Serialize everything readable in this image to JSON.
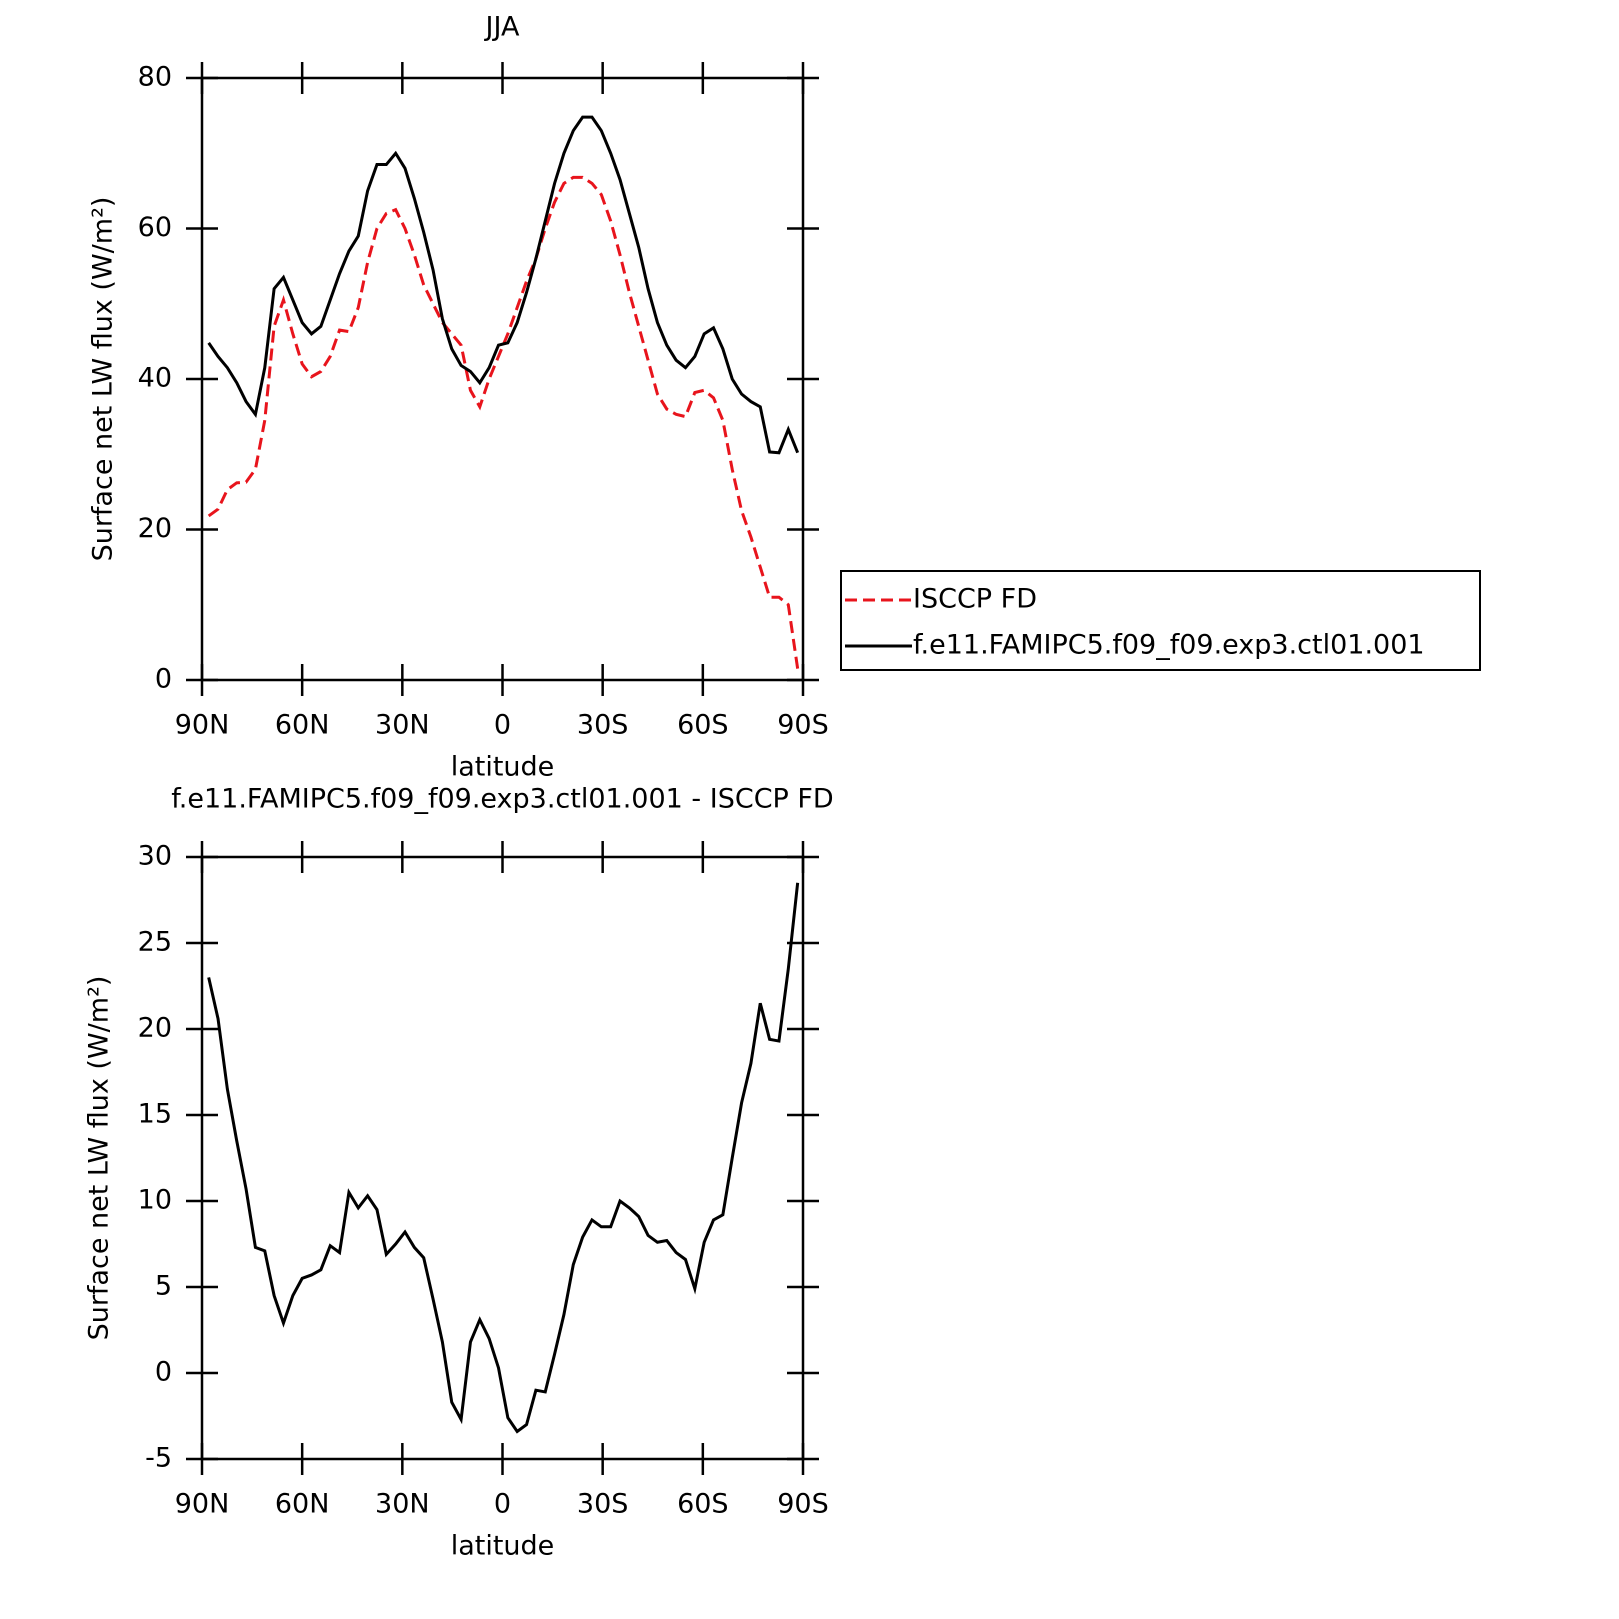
{
  "chart_data": [
    {
      "type": "line",
      "title": "JJA",
      "x_label": "latitude",
      "y_label": "Surface net LW flux (W/m²)",
      "x": [
        88,
        85.2,
        82.4,
        79.6,
        76.8,
        74,
        71.2,
        68.4,
        65.6,
        62.8,
        60,
        57.2,
        54.4,
        51.6,
        48.8,
        46,
        43.2,
        40.4,
        37.6,
        34.8,
        32,
        29.2,
        26.4,
        23.6,
        20.8,
        18,
        15.2,
        12.4,
        9.6,
        6.8,
        4,
        1.2,
        -1.6,
        -4.4,
        -7.2,
        -10,
        -12.8,
        -15.6,
        -18.4,
        -21.2,
        -24,
        -26.8,
        -29.6,
        -32.4,
        -35.2,
        -38,
        -40.8,
        -43.6,
        -46.4,
        -49.2,
        -52,
        -54.8,
        -57.6,
        -60.4,
        -63.2,
        -66,
        -68.8,
        -71.6,
        -74.4,
        -77.2,
        -80,
        -82.8,
        -85.6,
        -88.4
      ],
      "series": [
        {
          "name": "ISCCP FD",
          "color": "#e8141c",
          "line_style": "dashed",
          "values": [
            21.8,
            22.7,
            25.3,
            26.2,
            26.3,
            28,
            34.5,
            47,
            50.5,
            46,
            42,
            40.3,
            41,
            43,
            46.5,
            46.3,
            49.5,
            55.5,
            60,
            62,
            62.5,
            60,
            56.5,
            52.5,
            50,
            47.5,
            46,
            44.5,
            38.5,
            36.3,
            40,
            43,
            46,
            49.5,
            53,
            56,
            60,
            63.5,
            66,
            66.8,
            66.8,
            66,
            64.5,
            61,
            56.5,
            51.5,
            47,
            42.5,
            38,
            36,
            35.3,
            35,
            38.2,
            38.5,
            37.5,
            34.5,
            28,
            22.5,
            19,
            15,
            11,
            11,
            10,
            1.5
          ]
        },
        {
          "name": "f.e11.FAMIPC5.f09_f09.exp3.ctl01.001",
          "color": "#000000",
          "line_style": "solid",
          "values": [
            44.8,
            43,
            41.5,
            39.5,
            37,
            35.3,
            41.5,
            52,
            53.5,
            50.5,
            47.5,
            46,
            47,
            50.5,
            54,
            57,
            59,
            65,
            68.5,
            68.5,
            70,
            68,
            64,
            59.5,
            54.5,
            48,
            44,
            41.8,
            41,
            39.5,
            41.5,
            44.5,
            44.8,
            47.5,
            51.5,
            56,
            61,
            66,
            70,
            73,
            74.8,
            74.8,
            73,
            70,
            66.5,
            62,
            57.5,
            52,
            47.5,
            44.5,
            42.5,
            41.5,
            43,
            46,
            46.8,
            44,
            40,
            38,
            37,
            36.3,
            30.3,
            30.2,
            33.3,
            30.2
          ]
        }
      ],
      "xlim": [
        90,
        -90
      ],
      "xticks": [
        {
          "value": 90,
          "label": "90N"
        },
        {
          "value": 60,
          "label": "60N"
        },
        {
          "value": 30,
          "label": "30N"
        },
        0,
        {
          "value": -30,
          "label": "30S"
        },
        {
          "value": -60,
          "label": "60S"
        },
        {
          "value": -90,
          "label": "90S"
        }
      ],
      "ylim": [
        0,
        80
      ],
      "yticks": [
        0,
        20,
        40,
        60,
        80
      ],
      "legend": "right"
    },
    {
      "type": "line",
      "title": "f.e11.FAMIPC5.f09_f09.exp3.ctl01.001 - ISCCP FD",
      "x_label": "latitude",
      "y_label": "Surface net LW flux (W/m²)",
      "x": [
        88,
        85.2,
        82.4,
        79.6,
        76.8,
        74,
        71.2,
        68.4,
        65.6,
        62.8,
        60,
        57.2,
        54.4,
        51.6,
        48.8,
        46,
        43.2,
        40.4,
        37.6,
        34.8,
        32,
        29.2,
        26.4,
        23.6,
        20.8,
        18,
        15.2,
        12.4,
        9.6,
        6.8,
        4,
        1.2,
        -1.6,
        -4.4,
        -7.2,
        -10,
        -12.8,
        -15.6,
        -18.4,
        -21.2,
        -24,
        -26.8,
        -29.6,
        -32.4,
        -35.2,
        -38,
        -40.8,
        -43.6,
        -46.4,
        -49.2,
        -52,
        -54.8,
        -57.6,
        -60.4,
        -63.2,
        -66,
        -68.8,
        -71.6,
        -74.4,
        -77.2,
        -80,
        -82.8,
        -85.6,
        -88.4
      ],
      "values": [
        23,
        20.6,
        16.5,
        13.5,
        10.7,
        7.3,
        7.1,
        4.5,
        2.9,
        4.5,
        5.5,
        5.7,
        6,
        7.4,
        7,
        10.5,
        9.6,
        10.3,
        9.5,
        6.9,
        7.5,
        8.2,
        7.3,
        6.7,
        4.3,
        1.8,
        -1.7,
        -2.7,
        1.8,
        3.1,
        2,
        0.3,
        -2.6,
        -3.4,
        -3,
        -1,
        -1.1,
        1.1,
        3.4,
        6.3,
        7.9,
        8.9,
        8.5,
        8.5,
        10,
        9.6,
        9.1,
        8,
        7.6,
        7.7,
        7,
        6.6,
        4.9,
        7.6,
        8.9,
        9.2,
        12.5,
        15.7,
        18,
        21.5,
        19.4,
        19.3,
        23.5,
        28.5
      ],
      "color": "#000000",
      "xlim": [
        90,
        -90
      ],
      "xticks": [
        {
          "value": 90,
          "label": "90N"
        },
        {
          "value": 60,
          "label": "60N"
        },
        {
          "value": 30,
          "label": "30N"
        },
        0,
        {
          "value": -30,
          "label": "30S"
        },
        {
          "value": -60,
          "label": "60S"
        },
        {
          "value": -90,
          "label": "90S"
        }
      ],
      "ylim": [
        -5,
        30
      ],
      "yticks": [
        -5,
        0,
        5,
        10,
        15,
        20,
        25,
        30
      ]
    }
  ]
}
